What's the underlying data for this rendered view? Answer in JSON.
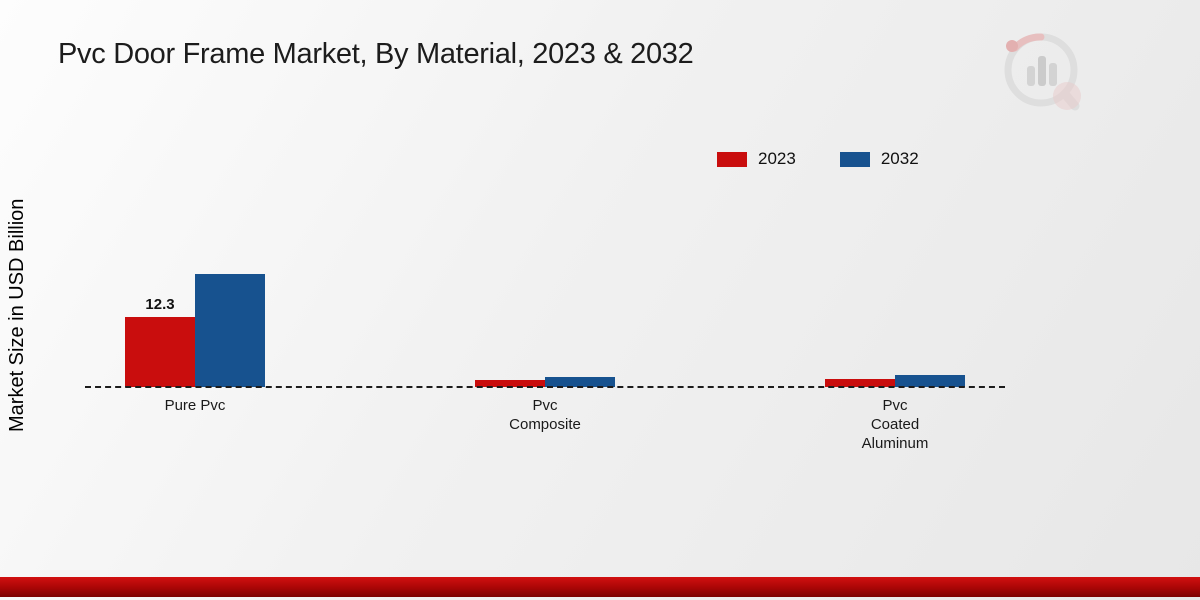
{
  "page": {
    "footer": ""
  },
  "chart_data": {
    "type": "bar",
    "title": "Pvc Door Frame Market, By Material, 2023 & 2032",
    "xlabel": "",
    "ylabel": "Market Size in USD Billion",
    "categories": [
      "Pure Pvc",
      "Pvc\nComposite",
      "Pvc\nCoated\nAluminum"
    ],
    "series": [
      {
        "name": "2023",
        "color": "#c90d0d",
        "values": [
          12.3,
          1.2,
          1.4
        ],
        "data_labels": [
          "12.3",
          "",
          ""
        ]
      },
      {
        "name": "2032",
        "color": "#17528f",
        "values": [
          19.9,
          1.7,
          2.1
        ],
        "data_labels": [
          "",
          "",
          ""
        ]
      }
    ],
    "ylim": [
      0,
      20
    ],
    "grid": false,
    "legend_position": "top-right",
    "baseline_style": "dashed"
  }
}
